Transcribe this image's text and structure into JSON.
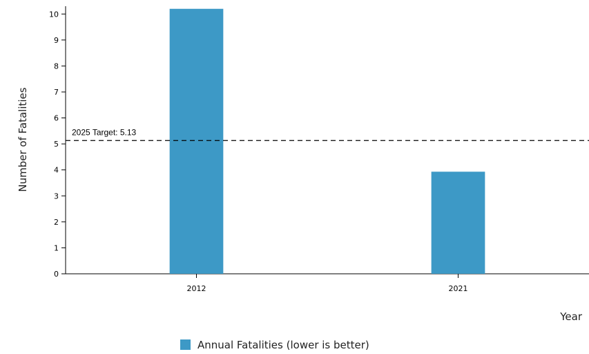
{
  "chart_data": {
    "type": "bar",
    "categories": [
      "2012",
      "2021"
    ],
    "series": [
      {
        "name": "Annual Fatalities (lower is better)",
        "values": [
          10.2,
          3.93
        ],
        "color": "#3d99c6"
      }
    ],
    "xlabel": "Year",
    "ylabel": "Number of Fatalities",
    "ylim": [
      0,
      10.3
    ],
    "yticks": [
      0,
      1,
      2,
      3,
      4,
      5,
      6,
      7,
      8,
      9,
      10
    ],
    "grid": false,
    "legend": "bottom-center",
    "annotations": [
      {
        "type": "hline",
        "y": 5.13,
        "label": "2025 Target: 5.13",
        "style": "dashed"
      }
    ]
  }
}
